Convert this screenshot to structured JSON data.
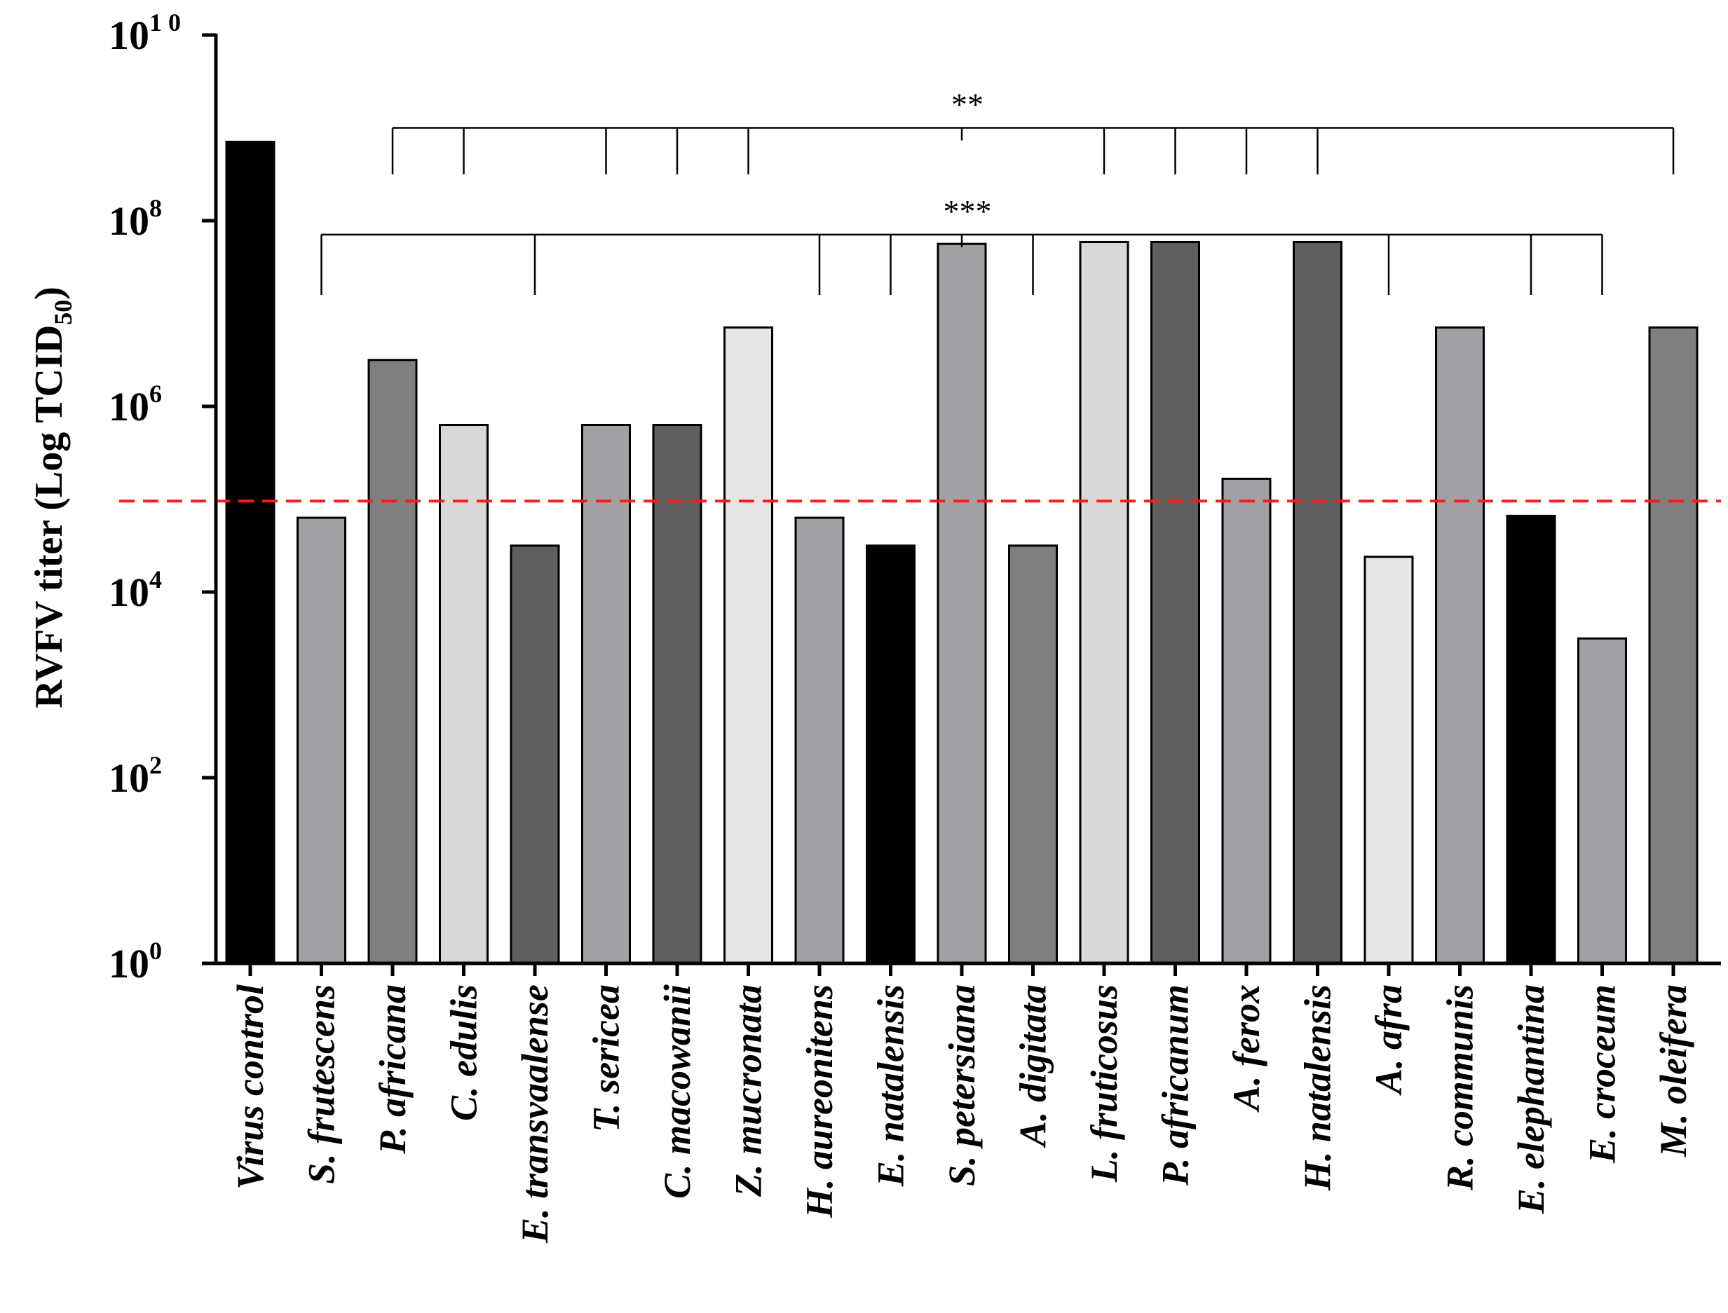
{
  "chart_data": {
    "type": "bar",
    "title": "",
    "xlabel": "",
    "ylabel": {
      "main": "RVFV titer (Log TCID",
      "subscript": "50",
      "close": ")"
    },
    "yscale": "log10",
    "ylim_exponents": [
      0,
      10
    ],
    "yticks": [
      {
        "base": "10",
        "exp": "0",
        "value_exp": 0
      },
      {
        "base": "10",
        "exp": "2",
        "value_exp": 2
      },
      {
        "base": "10",
        "exp": "4",
        "value_exp": 4
      },
      {
        "base": "10",
        "exp": "6",
        "value_exp": 6
      },
      {
        "base": "10",
        "exp": "8",
        "value_exp": 8
      },
      {
        "base": "10",
        "exp": "1 0",
        "value_exp": 10
      }
    ],
    "categories": [
      "Virus control",
      "S. frutescens",
      "P. africana",
      "C. edulis",
      "E. transvaalense",
      "T. sericea",
      "C. macowanii",
      "Z. mucronata",
      "H. aureonitens",
      "E. natalensis",
      "S. petersiana",
      "A. digitata",
      "L. fruticosus",
      "P. africanum",
      "A. ferox",
      "H. natalensis",
      "A. afra",
      "R. communis",
      "E. elephantina",
      "E. croceum",
      "M. oleifera"
    ],
    "values_log10": [
      8.85,
      4.8,
      6.5,
      5.8,
      4.5,
      5.8,
      5.8,
      6.85,
      4.8,
      4.5,
      7.75,
      4.5,
      7.77,
      7.77,
      5.22,
      7.77,
      4.38,
      6.85,
      4.82,
      3.5,
      6.85
    ],
    "bar_colors": [
      "#000000",
      "#a0a0a5",
      "#7f7f7f",
      "#d8d8d8",
      "#5f5f5f",
      "#a0a0a5",
      "#5f5f5f",
      "#e6e6e6",
      "#a0a0a5",
      "#000000",
      "#a0a0a5",
      "#7f7f7f",
      "#d8d8d8",
      "#5f5f5f",
      "#a0a0a5",
      "#5f5f5f",
      "#e6e6e6",
      "#a0a0a5",
      "#000000",
      "#a0a0a5",
      "#7f7f7f"
    ],
    "threshold_log10": 4.98,
    "threshold_color": "#ff1a1a",
    "significance": [
      {
        "label": "**",
        "level_log10": 9.0,
        "drop_to_log10": 8.5,
        "categories": [
          "P. africana",
          "C. edulis",
          "T. sericea",
          "C. macowanii",
          "Z. mucronata",
          "L. fruticosus",
          "P. africanum",
          "A. ferox",
          "H. natalensis",
          "M. oleifera"
        ],
        "label_anchor_category": "S. petersiana"
      },
      {
        "label": "***",
        "level_log10": 7.85,
        "drop_to_log10": 7.2,
        "categories": [
          "S. frutescens",
          "E. transvaalense",
          "H. aureonitens",
          "E. natalensis",
          "A. digitata",
          "A. afra",
          "E. elephantina",
          "E. croceum"
        ],
        "label_anchor_category": "S. petersiana"
      }
    ]
  }
}
